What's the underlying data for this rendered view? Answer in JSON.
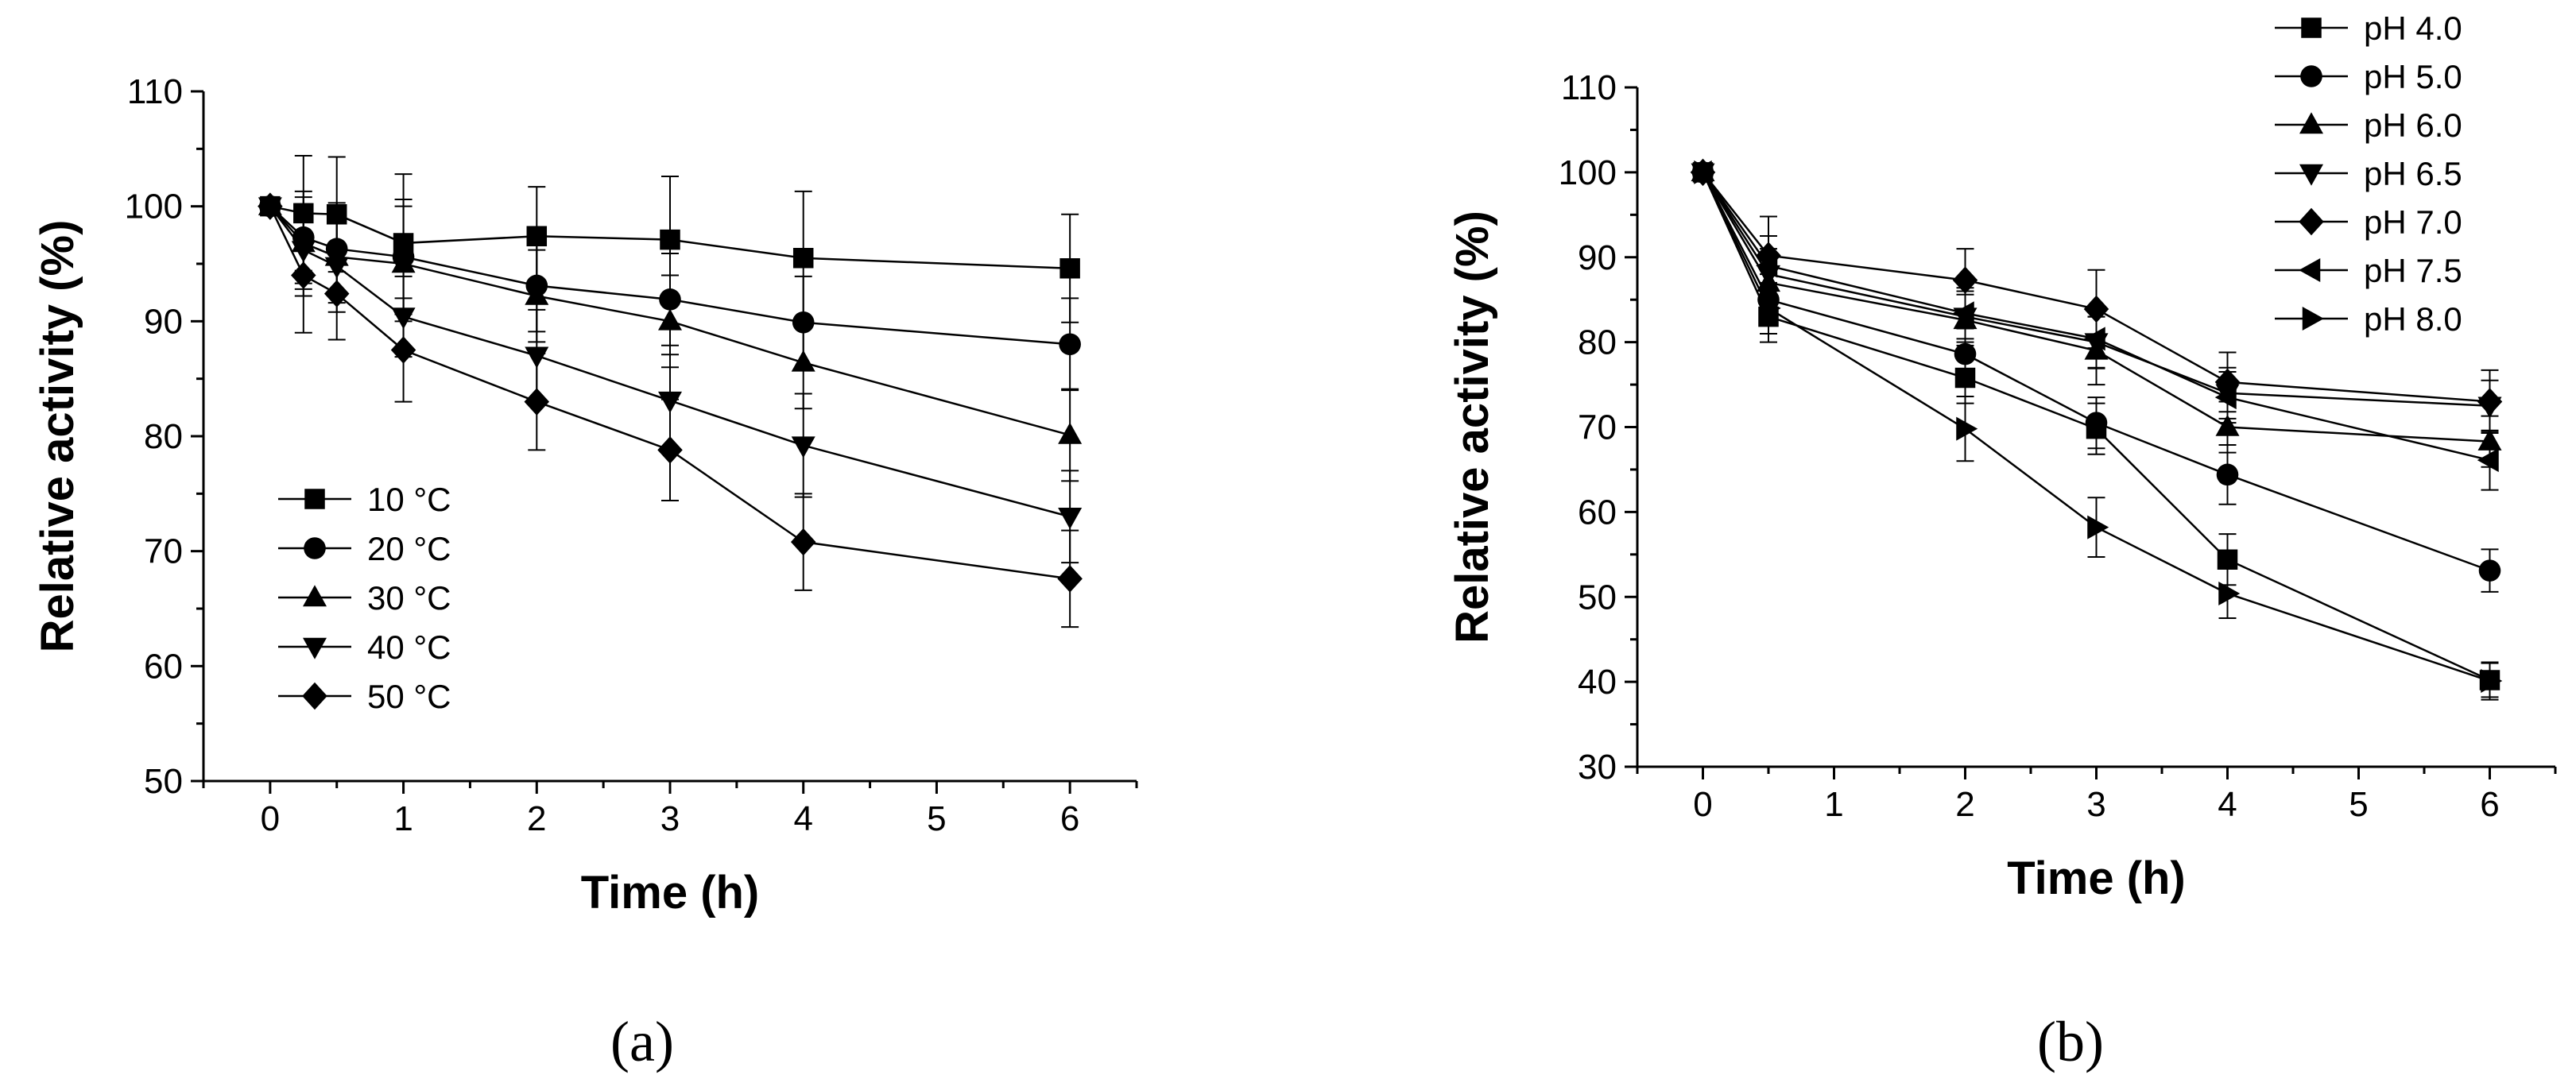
{
  "chart_data": [
    {
      "type": "line",
      "panel_label": "(a)",
      "xlabel": "Time (h)",
      "ylabel": "Relative activity (%)",
      "xlim": [
        -0.5,
        6.5
      ],
      "ylim": [
        50,
        110
      ],
      "xticks": [
        0,
        1,
        2,
        3,
        4,
        5,
        6
      ],
      "yticks": [
        50,
        60,
        70,
        80,
        90,
        100,
        110
      ],
      "legend_position": "bottom-left",
      "series": [
        {
          "name": "10 °C",
          "marker": "square",
          "x": [
            0,
            0.25,
            0.5,
            1,
            2,
            3,
            4,
            6
          ],
          "y": [
            100,
            99.4,
            99.3,
            96.8,
            97.4,
            97.1,
            95.5,
            94.6
          ],
          "err": [
            0,
            5,
            5,
            6,
            4.3,
            5.5,
            5.8,
            4.7
          ]
        },
        {
          "name": "20 °C",
          "marker": "circle",
          "x": [
            0,
            0.25,
            0.5,
            1,
            2,
            3,
            4,
            6
          ],
          "y": [
            100,
            97.3,
            96.3,
            95.6,
            93.1,
            91.9,
            89.9,
            88
          ],
          "err": [
            0,
            4,
            4,
            5,
            4,
            4,
            4,
            4
          ]
        },
        {
          "name": "30 °C",
          "marker": "triangle-up",
          "x": [
            0,
            0.25,
            0.5,
            1,
            2,
            3,
            4,
            6
          ],
          "y": [
            100,
            96.8,
            95.6,
            95,
            92.2,
            90,
            86.4,
            80.1
          ],
          "err": [
            0,
            4,
            4,
            5,
            4,
            4,
            4,
            4
          ]
        },
        {
          "name": "40 °C",
          "marker": "triangle-down",
          "x": [
            0,
            0.25,
            0.5,
            1,
            2,
            3,
            4,
            6
          ],
          "y": [
            100,
            96.2,
            94.8,
            90.4,
            87,
            83.1,
            79.2,
            73
          ],
          "err": [
            0,
            4,
            4,
            3.5,
            4,
            4,
            4.5,
            4
          ]
        },
        {
          "name": "50 °C",
          "marker": "diamond",
          "x": [
            0,
            0.25,
            0.5,
            1,
            2,
            3,
            4,
            6
          ],
          "y": [
            100,
            94,
            92.4,
            87.5,
            83,
            78.8,
            70.8,
            67.6
          ],
          "err": [
            0,
            5,
            4,
            4.5,
            4.2,
            4.4,
            4.2,
            4.2
          ]
        }
      ]
    },
    {
      "type": "line",
      "panel_label": "(b)",
      "xlabel": "Time (h)",
      "ylabel": "Relative activity (%)",
      "xlim": [
        -0.5,
        6.5
      ],
      "ylim": [
        30,
        110
      ],
      "xticks": [
        0,
        1,
        2,
        3,
        4,
        5,
        6
      ],
      "yticks": [
        30,
        40,
        50,
        60,
        70,
        80,
        90,
        100,
        110
      ],
      "legend_position": "top-right",
      "series": [
        {
          "name": "pH 4.0",
          "marker": "square",
          "x": [
            0,
            0.5,
            2,
            3,
            4,
            6
          ],
          "y": [
            100,
            83,
            75.8,
            69.8,
            54.4,
            40.2
          ],
          "err": [
            0,
            3,
            3,
            3,
            3,
            2
          ]
        },
        {
          "name": "pH 5.0",
          "marker": "circle",
          "x": [
            0,
            0.5,
            2,
            3,
            4,
            6
          ],
          "y": [
            100,
            85,
            78.6,
            70.5,
            64.4,
            53.1
          ],
          "err": [
            0,
            3,
            3,
            3,
            3.5,
            2.5
          ]
        },
        {
          "name": "pH 6.0",
          "marker": "triangle-up",
          "x": [
            0,
            0.5,
            2,
            3,
            4,
            6
          ],
          "y": [
            100,
            87,
            82.6,
            79,
            70,
            68.3
          ],
          "err": [
            0,
            3,
            3,
            4,
            3,
            3
          ]
        },
        {
          "name": "pH 6.5",
          "marker": "triangle-down",
          "x": [
            0,
            0.5,
            2,
            3,
            4,
            6
          ],
          "y": [
            100,
            88,
            83,
            80,
            74,
            72.5
          ],
          "err": [
            0,
            3,
            3,
            3,
            3,
            3
          ]
        },
        {
          "name": "pH 7.0",
          "marker": "diamond",
          "x": [
            0,
            0.5,
            2,
            3,
            4,
            6
          ],
          "y": [
            100,
            90.2,
            87.3,
            83.9,
            75.3,
            73
          ],
          "err": [
            0,
            4.6,
            3.7,
            4.6,
            3.5,
            3.7
          ]
        },
        {
          "name": "pH 7.5",
          "marker": "triangle-left",
          "x": [
            0,
            0.5,
            2,
            3,
            4,
            6
          ],
          "y": [
            100,
            89,
            83.4,
            80.4,
            73.5,
            66.1
          ],
          "err": [
            0,
            3.5,
            3,
            3.5,
            3,
            3.5
          ]
        },
        {
          "name": "pH 8.0",
          "marker": "triangle-right",
          "x": [
            0,
            0.5,
            2,
            3,
            4,
            6
          ],
          "y": [
            100,
            84,
            69.8,
            58.2,
            50.4,
            40.1
          ],
          "err": [
            0,
            3,
            3.8,
            3.5,
            2.9,
            2.2
          ]
        }
      ]
    }
  ]
}
